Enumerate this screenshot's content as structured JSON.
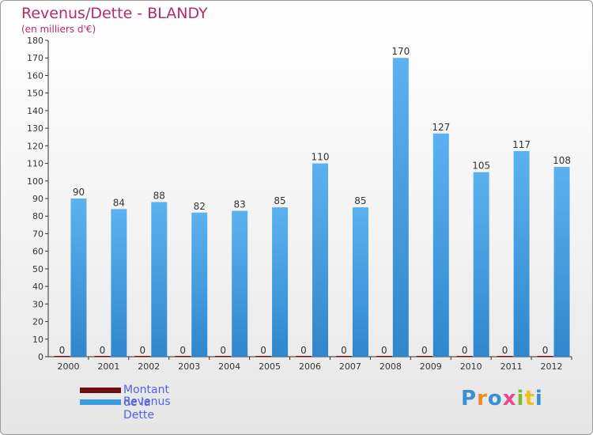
{
  "title": "Revenus/Dette - BLANDY",
  "subtitle": "(en milliers d'€)",
  "colors": {
    "title": "#b32a6d",
    "revenus": "#3d9be0",
    "dette": "#6b0f0f",
    "axis": "#333333",
    "grid": "#e0e0e0",
    "legend_text": "#4f63e8"
  },
  "chart_data": {
    "type": "bar",
    "title": "Revenus/Dette - BLANDY",
    "ylabel": "(en milliers d'€)",
    "xlabel": "",
    "ylim": [
      0,
      180
    ],
    "yticks": [
      0,
      10,
      20,
      30,
      40,
      50,
      60,
      70,
      80,
      90,
      100,
      110,
      120,
      130,
      140,
      150,
      160,
      170,
      180
    ],
    "categories": [
      "2000",
      "2001",
      "2002",
      "2003",
      "2004",
      "2005",
      "2006",
      "2007",
      "2008",
      "2009",
      "2010",
      "2011",
      "2012"
    ],
    "series": [
      {
        "name": "Montant de la Dette",
        "values": [
          0,
          0,
          0,
          0,
          0,
          0,
          0,
          0,
          0,
          0,
          0,
          0,
          0
        ]
      },
      {
        "name": "Revenus",
        "values": [
          90,
          84,
          88,
          82,
          83,
          85,
          110,
          85,
          170,
          127,
          105,
          117,
          108
        ]
      }
    ],
    "legend_position": "bottom-left"
  },
  "legend": {
    "items": [
      {
        "label": "Montant de la Dette",
        "color": "#6b0f0f"
      },
      {
        "label": "Revenus",
        "color": "#3d9be0"
      }
    ]
  },
  "logo": {
    "text": "Proxiti"
  }
}
